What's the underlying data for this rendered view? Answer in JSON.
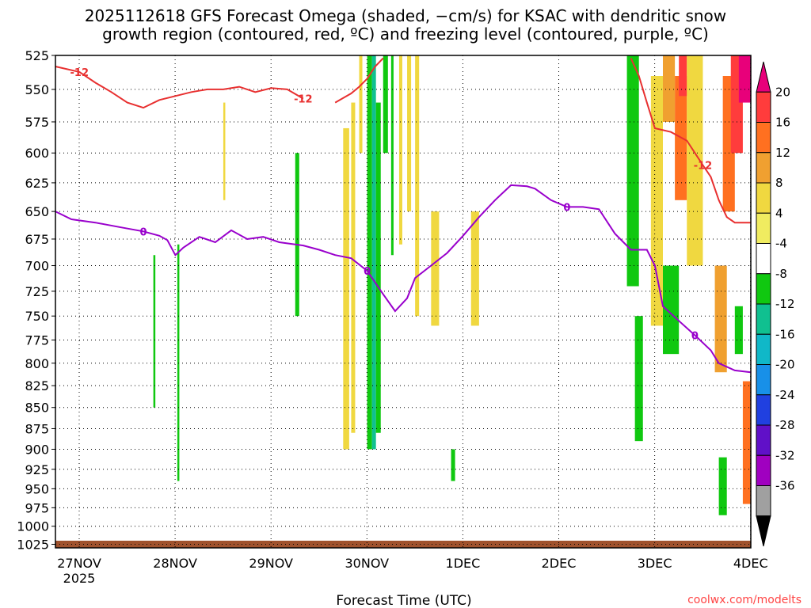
{
  "chart_data": {
    "type": "heatmap",
    "title_line1": "2025112618 GFS Forecast Omega (shaded, −cm/s) for KSAC with dendritic snow",
    "title_line2": "growth region (contoured, red, ºC) and freezing level (contoured, purple, ºC)",
    "xlabel": "Forecast Time (UTC)",
    "ylabel": "",
    "credit": "coolwx.com/modelts",
    "x_ticks": [
      {
        "label": "27NOV",
        "sub": "2025",
        "t": 0
      },
      {
        "label": "28NOV",
        "sub": "",
        "t": 24
      },
      {
        "label": "29NOV",
        "sub": "",
        "t": 48
      },
      {
        "label": "30NOV",
        "sub": "",
        "t": 72
      },
      {
        "label": "1DEC",
        "sub": "",
        "t": 96
      },
      {
        "label": "2DEC",
        "sub": "",
        "t": 120
      },
      {
        "label": "3DEC",
        "sub": "",
        "t": 144
      },
      {
        "label": "4DEC",
        "sub": "",
        "t": 168
      }
    ],
    "xlim": [
      0,
      174
    ],
    "y_ticks": [
      525,
      550,
      575,
      600,
      625,
      650,
      675,
      700,
      725,
      750,
      775,
      800,
      825,
      850,
      875,
      900,
      925,
      950,
      975,
      1000,
      1025
    ],
    "ylim": [
      525,
      1030
    ],
    "y_scale": "log-pressure",
    "grid": true,
    "colorbar": {
      "labels": [
        "20",
        "16",
        "12",
        "8",
        "4",
        "-4",
        "-8",
        "-12",
        "-16",
        "-20",
        "-24",
        "-28",
        "-32",
        "-36"
      ],
      "colors": [
        "#e8007a",
        "#ff3c3c",
        "#ff7020",
        "#f0a030",
        "#f0d840",
        "#f0ec60",
        "#ffffff",
        "#10c810",
        "#10c090",
        "#10b8c8",
        "#1890e8",
        "#2040e0",
        "#6010c8",
        "#a000c0",
        "#a0a0a0",
        "#000000"
      ]
    },
    "freezing_level": {
      "label": "0",
      "color": "#9900cc",
      "points": [
        [
          0,
          650
        ],
        [
          4,
          657
        ],
        [
          10,
          660
        ],
        [
          16,
          664
        ],
        [
          22,
          668
        ],
        [
          26,
          672
        ],
        [
          28,
          676
        ],
        [
          30,
          690
        ],
        [
          32,
          683
        ],
        [
          36,
          673
        ],
        [
          40,
          678
        ],
        [
          44,
          667
        ],
        [
          48,
          675
        ],
        [
          52,
          673
        ],
        [
          56,
          678
        ],
        [
          62,
          681
        ],
        [
          66,
          685
        ],
        [
          70,
          690
        ],
        [
          74,
          693
        ],
        [
          78,
          705
        ],
        [
          82,
          728
        ],
        [
          85,
          745
        ],
        [
          88,
          732
        ],
        [
          90,
          712
        ],
        [
          94,
          700
        ],
        [
          98,
          688
        ],
        [
          102,
          672
        ],
        [
          106,
          655
        ],
        [
          110,
          640
        ],
        [
          114,
          627
        ],
        [
          118,
          628
        ],
        [
          120,
          630
        ],
        [
          124,
          640
        ],
        [
          128,
          646
        ],
        [
          132,
          646
        ],
        [
          136,
          648
        ],
        [
          140,
          670
        ],
        [
          144,
          685
        ],
        [
          148,
          685
        ],
        [
          150,
          700
        ],
        [
          152,
          740
        ],
        [
          156,
          755
        ],
        [
          160,
          770
        ],
        [
          164,
          786
        ],
        [
          166,
          800
        ],
        [
          170,
          808
        ],
        [
          174,
          810
        ]
      ]
    },
    "dgz_top": {
      "label": "-12",
      "color": "#e83030",
      "points": [
        [
          0,
          533
        ],
        [
          6,
          537
        ],
        [
          10,
          545
        ],
        [
          14,
          552
        ],
        [
          18,
          560
        ],
        [
          22,
          564
        ],
        [
          26,
          558
        ],
        [
          30,
          555
        ],
        [
          34,
          552
        ],
        [
          38,
          550
        ],
        [
          42,
          550
        ],
        [
          46,
          548
        ],
        [
          50,
          552
        ],
        [
          54,
          549
        ],
        [
          58,
          550
        ],
        [
          62,
          557
        ]
      ]
    },
    "dgz_top_2": {
      "label": "-12",
      "color": "#e83030",
      "points": [
        [
          70,
          560
        ],
        [
          74,
          553
        ],
        [
          76,
          548
        ],
        [
          78,
          542
        ],
        [
          80,
          533
        ],
        [
          82,
          527
        ]
      ]
    },
    "dgz_bottom": {
      "label": "-12",
      "color": "#e83030",
      "points": [
        [
          144,
          527
        ],
        [
          146,
          540
        ],
        [
          148,
          560
        ],
        [
          150,
          580
        ],
        [
          154,
          583
        ],
        [
          158,
          590
        ],
        [
          160,
          600
        ],
        [
          162,
          610
        ],
        [
          164,
          620
        ],
        [
          166,
          640
        ],
        [
          168,
          655
        ],
        [
          170,
          660
        ],
        [
          174,
          660
        ]
      ]
    },
    "omega_cells": [
      {
        "t0": 76.0,
        "t1": 76.8,
        "p0": 525,
        "p1": 600,
        "v": 4
      },
      {
        "t0": 78.0,
        "t1": 79.2,
        "p0": 525,
        "p1": 900,
        "v": -6
      },
      {
        "t0": 79.2,
        "t1": 80.2,
        "p0": 525,
        "p1": 900,
        "v": -10
      },
      {
        "t0": 80.2,
        "t1": 81.4,
        "p0": 560,
        "p1": 880,
        "v": -6
      },
      {
        "t0": 82.0,
        "t1": 83.2,
        "p0": 525,
        "p1": 600,
        "v": -6
      },
      {
        "t0": 84.0,
        "t1": 84.6,
        "p0": 525,
        "p1": 690,
        "v": -6
      },
      {
        "t0": 86.0,
        "t1": 86.8,
        "p0": 525,
        "p1": 680,
        "v": 4
      },
      {
        "t0": 88.0,
        "t1": 89.0,
        "p0": 525,
        "p1": 650,
        "v": 4
      },
      {
        "t0": 90.0,
        "t1": 91.0,
        "p0": 525,
        "p1": 750,
        "v": 4
      },
      {
        "t0": 72.0,
        "t1": 73.5,
        "p0": 580,
        "p1": 900,
        "v": 4
      },
      {
        "t0": 74.0,
        "t1": 75.0,
        "p0": 560,
        "p1": 880,
        "v": 4
      },
      {
        "t0": 60.0,
        "t1": 61.0,
        "p0": 600,
        "p1": 750,
        "v": -6
      },
      {
        "t0": 30.5,
        "t1": 31.0,
        "p0": 680,
        "p1": 940,
        "v": -6
      },
      {
        "t0": 24.5,
        "t1": 25.0,
        "p0": 690,
        "p1": 850,
        "v": -6
      },
      {
        "t0": 42.0,
        "t1": 42.5,
        "p0": 560,
        "p1": 640,
        "v": 4
      },
      {
        "t0": 94.0,
        "t1": 96.0,
        "p0": 650,
        "p1": 760,
        "v": 4
      },
      {
        "t0": 99.0,
        "t1": 100.0,
        "p0": 900,
        "p1": 940,
        "v": -6
      },
      {
        "t0": 104.0,
        "t1": 106.0,
        "p0": 650,
        "p1": 760,
        "v": 4
      },
      {
        "t0": 143.0,
        "t1": 146.0,
        "p0": 525,
        "p1": 720,
        "v": -6
      },
      {
        "t0": 149.0,
        "t1": 152.0,
        "p0": 540,
        "p1": 760,
        "v": 4
      },
      {
        "t0": 152.0,
        "t1": 155.0,
        "p0": 525,
        "p1": 575,
        "v": 8
      },
      {
        "t0": 155.0,
        "t1": 158.0,
        "p0": 540,
        "p1": 640,
        "v": 12
      },
      {
        "t0": 156.0,
        "t1": 158.0,
        "p0": 525,
        "p1": 555,
        "v": 16
      },
      {
        "t0": 158.0,
        "t1": 162.0,
        "p0": 525,
        "p1": 700,
        "v": 4
      },
      {
        "t0": 152.0,
        "t1": 156.0,
        "p0": 700,
        "p1": 790,
        "v": -6
      },
      {
        "t0": 145.0,
        "t1": 147.0,
        "p0": 750,
        "p1": 890,
        "v": -6
      },
      {
        "t0": 165.0,
        "t1": 168.0,
        "p0": 700,
        "p1": 810,
        "v": 8
      },
      {
        "t0": 167.0,
        "t1": 170.0,
        "p0": 540,
        "p1": 650,
        "v": 12
      },
      {
        "t0": 169.0,
        "t1": 172.0,
        "p0": 525,
        "p1": 600,
        "v": 16
      },
      {
        "t0": 171.0,
        "t1": 174.0,
        "p0": 525,
        "p1": 560,
        "v": 20
      },
      {
        "t0": 172.0,
        "t1": 174.0,
        "p0": 820,
        "p1": 970,
        "v": 12
      },
      {
        "t0": 166.0,
        "t1": 168.0,
        "p0": 910,
        "p1": 985,
        "v": -6
      },
      {
        "t0": 170.0,
        "t1": 172.0,
        "p0": 740,
        "p1": 790,
        "v": -6
      }
    ],
    "surface_pressure": 1020
  }
}
